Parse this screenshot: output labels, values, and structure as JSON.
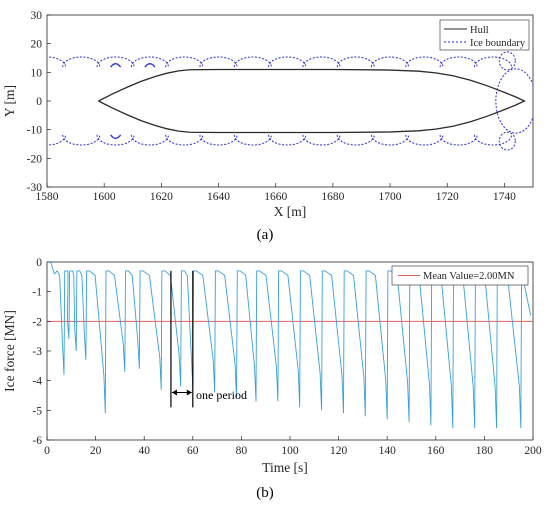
{
  "colors": {
    "hull": "#2b2b2b",
    "ice": "#2d2dcf",
    "force": "#3aa0d6",
    "mean": "#e06060",
    "axis": "#262626"
  },
  "chart_data": [
    {
      "type": "line",
      "caption": "(a)",
      "xlabel": "X [m]",
      "ylabel": "Y [m]",
      "xlim": [
        1580,
        1750
      ],
      "ylim": [
        -30,
        30
      ],
      "xticks": [
        "1580",
        "1600",
        "1620",
        "1640",
        "1660",
        "1680",
        "1700",
        "1720",
        "1740"
      ],
      "yticks": [
        "30",
        "20",
        "10",
        "0",
        "-10",
        "-20",
        "-30"
      ],
      "legend_position": "top-right",
      "legend": [
        "Hull",
        "Ice boundary"
      ],
      "series": [
        {
          "name": "Hull",
          "style": "solid",
          "x": [
            1598,
            1603,
            1608,
            1613,
            1618,
            1622,
            1626,
            1630,
            1640,
            1660,
            1680,
            1700,
            1710,
            1716,
            1722,
            1728,
            1734,
            1740,
            1744,
            1747,
            1744,
            1740,
            1734,
            1728,
            1722,
            1716,
            1710,
            1700,
            1680,
            1660,
            1640,
            1630,
            1626,
            1622,
            1618,
            1613,
            1608,
            1603,
            1598
          ],
          "y": [
            0,
            2.5,
            4.8,
            6.9,
            8.6,
            9.7,
            10.5,
            10.9,
            11.0,
            11.0,
            11.0,
            10.8,
            10.4,
            9.8,
            8.8,
            7.3,
            5.3,
            3.0,
            1.4,
            0,
            -1.4,
            -3.0,
            -5.3,
            -7.3,
            -8.8,
            -9.8,
            -10.4,
            -10.8,
            -11.0,
            -11.0,
            -11.0,
            -10.9,
            -10.5,
            -9.7,
            -8.6,
            -6.9,
            -4.8,
            -2.5,
            0
          ]
        },
        {
          "name": "Ice boundary",
          "style": "dashed",
          "note": "scalloped circular arcs around the hull",
          "arc_centers_x": [
            1580,
            1592,
            1604,
            1616,
            1628,
            1640,
            1652,
            1664,
            1676,
            1688,
            1700,
            1712,
            1724,
            1736
          ],
          "upper_y": 11.8,
          "lower_y": -11.8,
          "bow_circle": {
            "x": 1744,
            "y": 0,
            "r": 7
          }
        }
      ]
    },
    {
      "type": "line",
      "caption": "(b)",
      "xlabel": "Time [s]",
      "ylabel": "Ice force [MN]",
      "xlim": [
        0,
        200
      ],
      "ylim": [
        -6,
        0
      ],
      "xticks": [
        "0",
        "20",
        "40",
        "60",
        "80",
        "100",
        "120",
        "140",
        "160",
        "180",
        "200"
      ],
      "yticks": [
        "0",
        "-1",
        "-2",
        "-3",
        "-4",
        "-5",
        "-6"
      ],
      "legend_position": "top-right",
      "legend": [
        "Mean Value=2.00MN"
      ],
      "annotation": "one period",
      "period_marker_x": [
        51,
        60
      ],
      "mean_value": -2.0,
      "series": [
        {
          "name": "Ice force",
          "style": "sawtooth",
          "peak_times": [
            7,
            9,
            12,
            16,
            24,
            32,
            38,
            47,
            55,
            60,
            69,
            78,
            86,
            95,
            104,
            113,
            122,
            131,
            140,
            149,
            158,
            167,
            176,
            185,
            195
          ],
          "peak_minima": [
            -3.8,
            -2.6,
            -3.0,
            -3.3,
            -5.1,
            -3.7,
            -3.6,
            -4.3,
            -4.2,
            -4.2,
            -4.4,
            -4.6,
            -4.7,
            -4.7,
            -4.9,
            -5.0,
            -5.1,
            -5.2,
            -5.3,
            -5.4,
            -5.5,
            -5.6,
            -5.6,
            -5.6,
            -5.6
          ],
          "reset_level": -0.3
        },
        {
          "name": "Mean Value=2.00MN",
          "style": "horizontal",
          "y": -2.0
        }
      ]
    }
  ]
}
